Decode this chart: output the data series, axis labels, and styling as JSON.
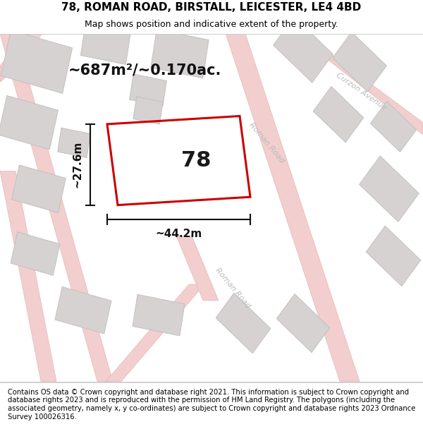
{
  "title": "78, ROMAN ROAD, BIRSTALL, LEICESTER, LE4 4BD",
  "subtitle": "Map shows position and indicative extent of the property.",
  "footer": "Contains OS data © Crown copyright and database right 2021. This information is subject to Crown copyright and database rights 2023 and is reproduced with the permission of HM Land Registry. The polygons (including the associated geometry, namely x, y co-ordinates) are subject to Crown copyright and database rights 2023 Ordnance Survey 100026316.",
  "area_label": "~687m²/~0.170ac.",
  "width_label": "~44.2m",
  "height_label": "~27.6m",
  "property_number": "78",
  "map_bg": "#f7f4f4",
  "road_fill": "#f2cece",
  "road_edge": "#e8b8b8",
  "building_fill": "#d6d2d2",
  "building_edge": "#c0bcbc",
  "property_outline": "#cc0000",
  "dim_line_color": "#111111",
  "road_label_color": "#bbbbbb",
  "title_fontsize": 11,
  "subtitle_fontsize": 9,
  "footer_fontsize": 7.2,
  "area_fontsize": 15,
  "number_fontsize": 22,
  "dim_fontsize": 11,
  "road_fontsize": 8
}
